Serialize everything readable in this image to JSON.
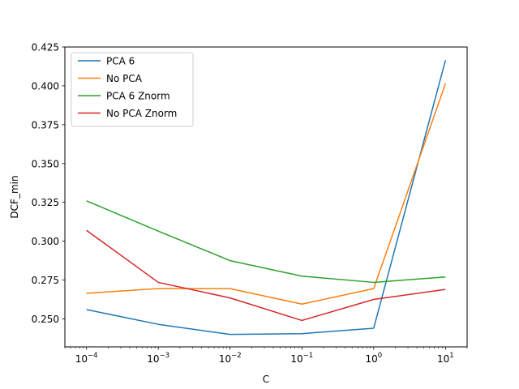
{
  "chart_data": {
    "type": "line",
    "title": "",
    "xlabel": "C",
    "ylabel": "DCF_min",
    "x_scale": "log",
    "x": [
      0.0001,
      0.001,
      0.01,
      0.1,
      1,
      10
    ],
    "x_tick_labels": [
      {
        "base": "10",
        "exp": "−4"
      },
      {
        "base": "10",
        "exp": "−3"
      },
      {
        "base": "10",
        "exp": "−2"
      },
      {
        "base": "10",
        "exp": "−1"
      },
      {
        "base": "10",
        "exp": "0"
      },
      {
        "base": "10",
        "exp": "1"
      }
    ],
    "xlim": [
      5e-05,
      20
    ],
    "ylim": [
      0.232,
      0.425
    ],
    "y_ticks": [
      0.25,
      0.275,
      0.3,
      0.325,
      0.35,
      0.375,
      0.4,
      0.425
    ],
    "y_tick_labels": [
      "0.250",
      "0.275",
      "0.300",
      "0.325",
      "0.350",
      "0.375",
      "0.400",
      "0.425"
    ],
    "grid": false,
    "legend_position": "top-left",
    "series": [
      {
        "name": "PCA 6",
        "color": "#1f77b4",
        "values": [
          0.256,
          0.2465,
          0.24,
          0.2405,
          0.244,
          0.4165
        ]
      },
      {
        "name": "No PCA",
        "color": "#ff7f0e",
        "values": [
          0.2665,
          0.2695,
          0.2695,
          0.2595,
          0.2695,
          0.4015
        ]
      },
      {
        "name": "PCA 6 Znorm",
        "color": "#2ca02c",
        "values": [
          0.326,
          0.3065,
          0.2875,
          0.2775,
          0.2735,
          0.277
        ]
      },
      {
        "name": "No PCA Znorm",
        "color": "#d62728",
        "values": [
          0.307,
          0.2735,
          0.2635,
          0.249,
          0.2625,
          0.269
        ]
      }
    ]
  }
}
